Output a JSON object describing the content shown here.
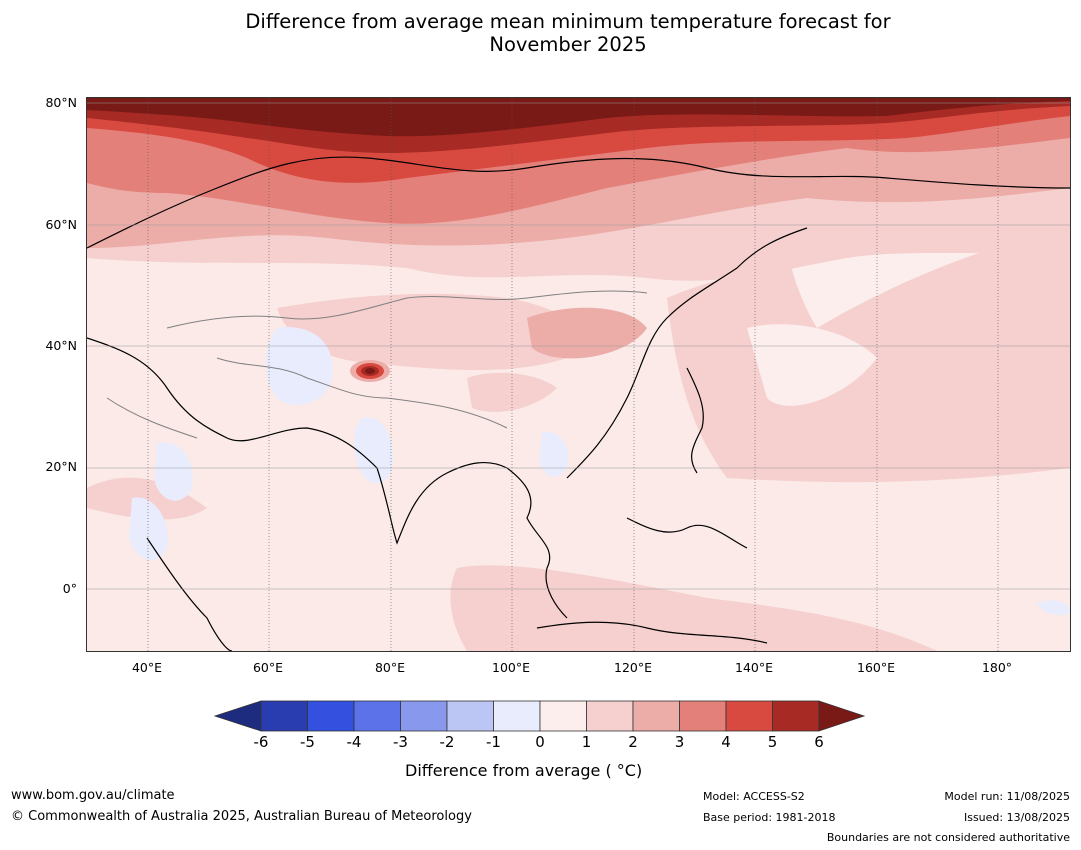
{
  "title_line1": "Difference from average mean minimum temperature forecast for",
  "title_line2": "November 2025",
  "lat_labels": [
    "80°N",
    "60°N",
    "40°N",
    "20°N",
    "0°"
  ],
  "lon_labels": [
    "40°E",
    "60°E",
    "80°E",
    "100°E",
    "120°E",
    "140°E",
    "160°E",
    "180°"
  ],
  "colorbar": {
    "ticks": [
      "-6",
      "-5",
      "-4",
      "-3",
      "-2",
      "-1",
      "0",
      "1",
      "2",
      "3",
      "4",
      "5",
      "6"
    ],
    "colors": [
      "#1e2c80",
      "#2a3db0",
      "#3350de",
      "#5b72e8",
      "#8898ec",
      "#bcc6f4",
      "#e8ecfc",
      "#fdeeee",
      "#f5d0ce",
      "#ecaca8",
      "#e4807a",
      "#d84a40",
      "#a82a24",
      "#7a1a16"
    ],
    "label": "Difference from average ( °C)"
  },
  "footer": {
    "website": "www.bom.gov.au/climate",
    "copyright": "© Commonwealth of Australia 2025, Australian Bureau of Meteorology",
    "model": "Model: ACCESS-S2",
    "base_period": "Base period: 1981-2018",
    "model_run": "Model run: 11/08/2025",
    "issued": "Issued: 13/08/2025",
    "disclaimer": "Boundaries are not considered authoritative"
  }
}
